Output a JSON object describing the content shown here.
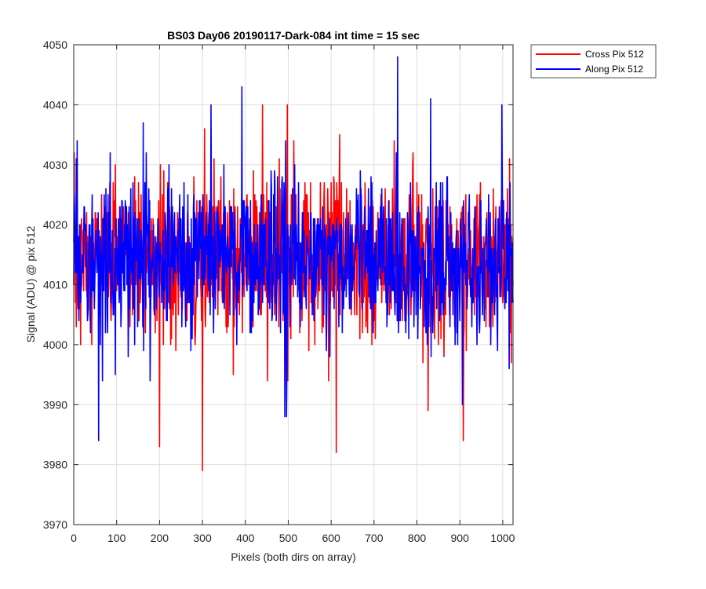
{
  "chart_data": {
    "type": "line",
    "title": "BS03 Day06 20190117-Dark-084 int time = 15 sec",
    "xlabel": "Pixels (both dirs on array)",
    "ylabel": "Signal (ADU) @ pix 512",
    "xlim": [
      0,
      1024
    ],
    "ylim": [
      3970,
      4050
    ],
    "xticks": [
      0,
      100,
      200,
      300,
      400,
      500,
      600,
      700,
      800,
      900,
      1000
    ],
    "yticks": [
      3970,
      3980,
      3990,
      4000,
      4010,
      4020,
      4030,
      4040,
      4050
    ],
    "grid": true,
    "legend_position": "outside top-right",
    "series": [
      {
        "name": "Cross Pix 512",
        "color": "#ff0000",
        "x_start": 0,
        "x_step": 1,
        "center": 4014,
        "spread": 6.5,
        "extremes": [
          {
            "x": 1,
            "y": 4032
          },
          {
            "x": 200,
            "y": 3983
          },
          {
            "x": 202,
            "y": 4030
          },
          {
            "x": 300,
            "y": 3979
          },
          {
            "x": 305,
            "y": 4036
          },
          {
            "x": 440,
            "y": 4040
          },
          {
            "x": 498,
            "y": 4040
          },
          {
            "x": 612,
            "y": 3982
          },
          {
            "x": 620,
            "y": 4035
          },
          {
            "x": 826,
            "y": 3989
          },
          {
            "x": 908,
            "y": 3984
          },
          {
            "x": 1020,
            "y": 3997
          }
        ]
      },
      {
        "name": "Along Pix 512",
        "color": "#0000ff",
        "x_start": 0,
        "x_step": 1,
        "center": 4014,
        "spread": 6.5,
        "extremes": [
          {
            "x": 8,
            "y": 4034
          },
          {
            "x": 58,
            "y": 3984
          },
          {
            "x": 162,
            "y": 4037
          },
          {
            "x": 320,
            "y": 4040
          },
          {
            "x": 392,
            "y": 4043
          },
          {
            "x": 492,
            "y": 3988
          },
          {
            "x": 496,
            "y": 3988
          },
          {
            "x": 755,
            "y": 4048
          },
          {
            "x": 832,
            "y": 4041
          },
          {
            "x": 906,
            "y": 3990
          },
          {
            "x": 998,
            "y": 4040
          },
          {
            "x": 1015,
            "y": 3996
          }
        ]
      }
    ]
  }
}
